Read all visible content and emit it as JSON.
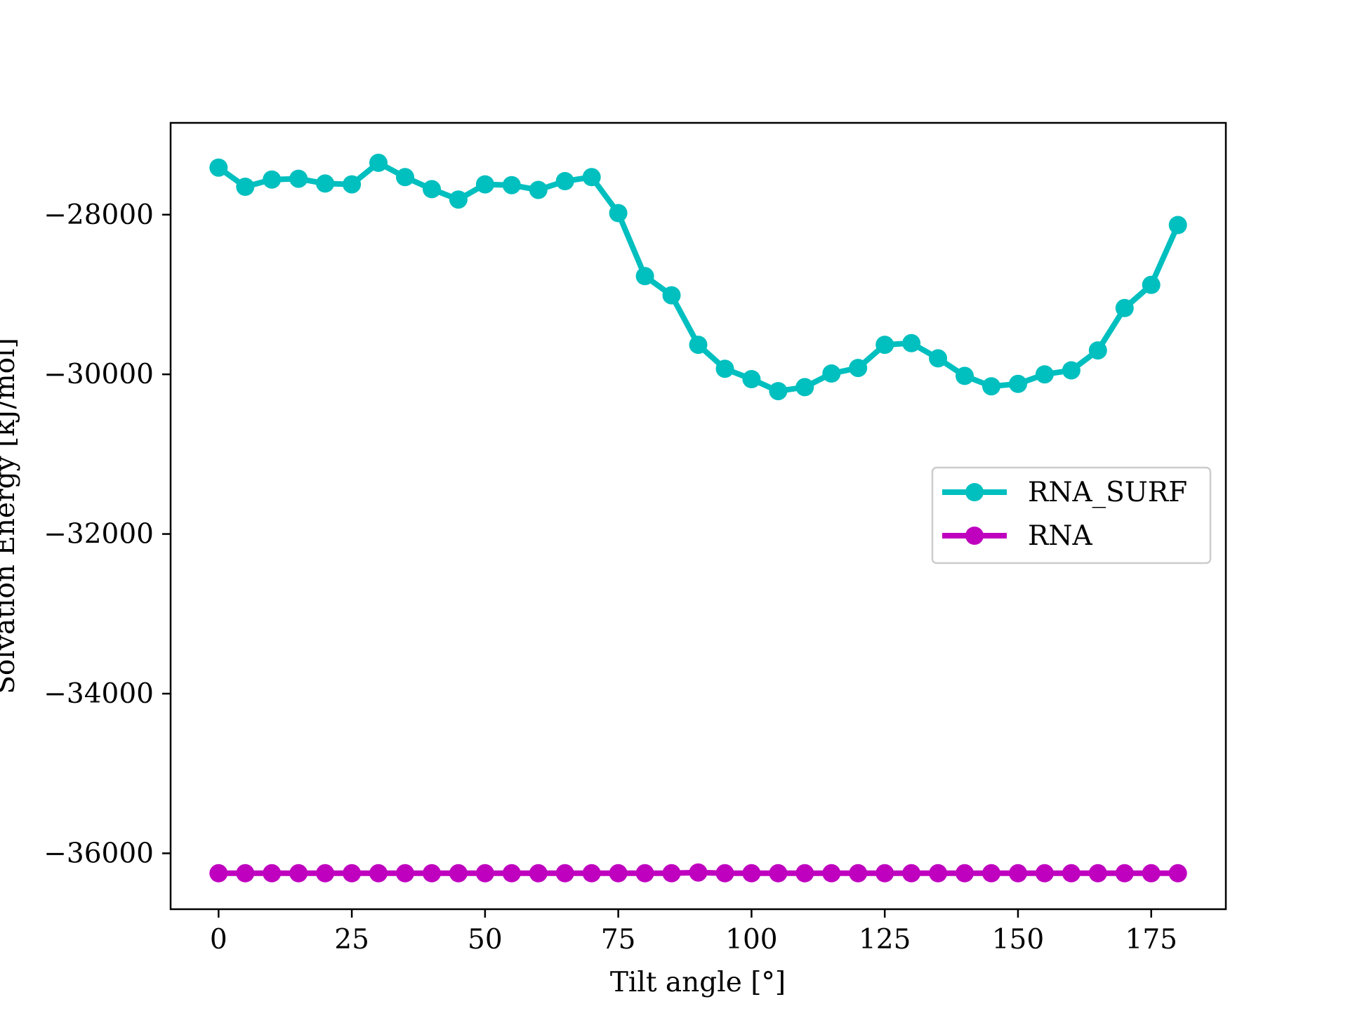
{
  "chart_data": {
    "type": "line",
    "title": "",
    "xlabel": "Tilt angle [°]",
    "ylabel": "Solvation Energy [kJ/mol]",
    "xlim": [
      -9,
      189
    ],
    "ylim": [
      -36700,
      -26850
    ],
    "xticks": [
      0,
      25,
      50,
      75,
      100,
      125,
      150,
      175
    ],
    "yticks": [
      -28000,
      -30000,
      -32000,
      -34000,
      -36000
    ],
    "xtick_labels": [
      "0",
      "25",
      "50",
      "75",
      "100",
      "125",
      "150",
      "175"
    ],
    "ytick_labels": [
      "−28000",
      "−30000",
      "−32000",
      "−34000",
      "−36000"
    ],
    "grid": false,
    "legend_position": "center-right",
    "x": [
      0,
      5,
      10,
      15,
      20,
      25,
      30,
      35,
      40,
      45,
      50,
      55,
      60,
      65,
      70,
      75,
      80,
      85,
      90,
      95,
      100,
      105,
      110,
      115,
      120,
      125,
      130,
      135,
      140,
      145,
      150,
      155,
      160,
      165,
      170,
      175,
      180
    ],
    "series": [
      {
        "name": "RNA_SURF",
        "color": "#00bfbf",
        "values": [
          -27410,
          -27650,
          -27560,
          -27550,
          -27610,
          -27620,
          -27350,
          -27530,
          -27680,
          -27810,
          -27620,
          -27630,
          -27690,
          -27580,
          -27530,
          -27980,
          -28770,
          -29010,
          -29630,
          -29930,
          -30060,
          -30210,
          -30160,
          -29990,
          -29920,
          -29630,
          -29610,
          -29800,
          -30020,
          -30150,
          -30120,
          -30000,
          -29950,
          -29700,
          -29170,
          -28880,
          -28130
        ]
      },
      {
        "name": "RNA",
        "color": "#bf00bf",
        "values": [
          -36250,
          -36250,
          -36250,
          -36250,
          -36250,
          -36250,
          -36250,
          -36250,
          -36250,
          -36250,
          -36250,
          -36250,
          -36250,
          -36250,
          -36250,
          -36250,
          -36250,
          -36250,
          -36240,
          -36250,
          -36250,
          -36250,
          -36250,
          -36250,
          -36250,
          -36250,
          -36250,
          -36250,
          -36250,
          -36250,
          -36250,
          -36250,
          -36250,
          -36250,
          -36250,
          -36250,
          -36250
        ]
      }
    ]
  }
}
